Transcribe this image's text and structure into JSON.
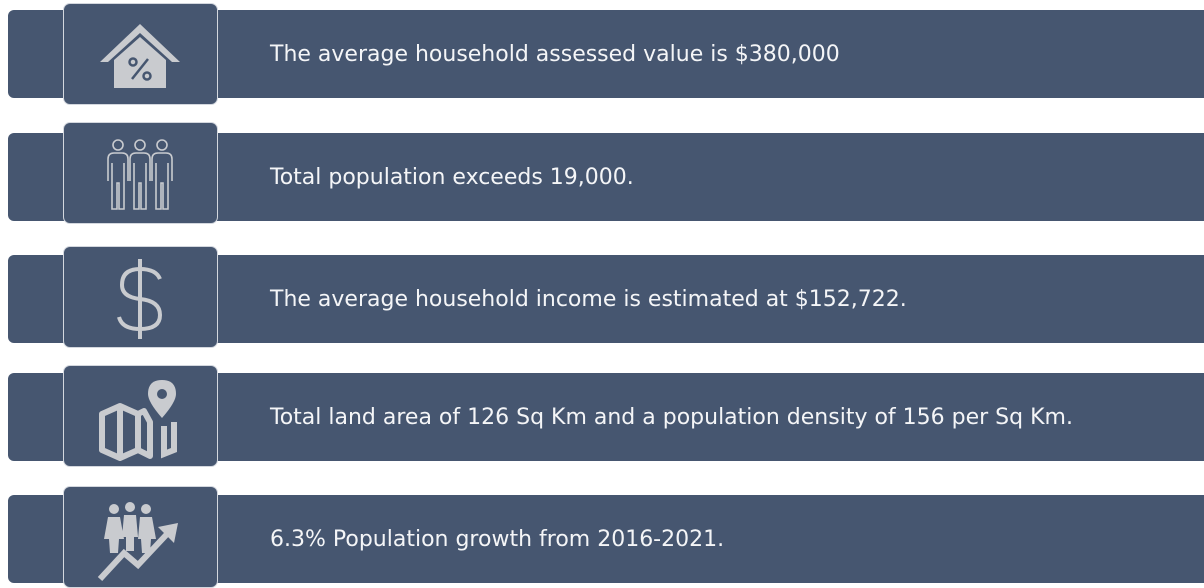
{
  "items": [
    {
      "text": "The average household assessed value is $380,000"
    },
    {
      "text": "Total population exceeds 19,000."
    },
    {
      "text": "The average household income is estimated at $152,722."
    },
    {
      "text": "Total land area of 126 Sq Km and a population density of 156 per Sq Km."
    },
    {
      "text": "6.3% Population growth from 2016-2021."
    }
  ]
}
